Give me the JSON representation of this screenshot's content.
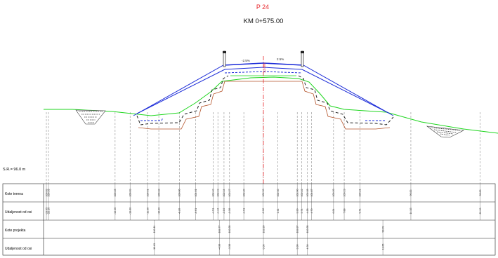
{
  "profile": {
    "number": "P 24",
    "chainage": "KM 0+575.00",
    "axis_label": "102.890",
    "scale_ref": "S.R.= 96.0 m",
    "slope_left": "-2.5%",
    "slope_right": "2.5%"
  },
  "colors": {
    "title_red": "#e8262b",
    "terrain_green": "#1ed61e",
    "road_blue": "#1b2bd8",
    "axis_red": "#e8262b",
    "base_brown": "#b5542b"
  },
  "table": {
    "rows": [
      {
        "label": "Kote terena"
      },
      {
        "label": "Udaljenost od osi"
      },
      {
        "label": "Kote projekta"
      },
      {
        "label": "Udaljenost od osi"
      }
    ],
    "terrain": [
      {
        "z": "100.03",
        "d": "-23.05"
      },
      {
        "z": "100.39",
        "d": "-22.10"
      },
      {
        "z": "100.15",
        "d": "-14.46"
      },
      {
        "z": "100.03",
        "d": "-13.00"
      },
      {
        "z": "100.01",
        "d": "-11.30"
      },
      {
        "z": "100.18",
        "d": "-10.20"
      },
      {
        "z": "100.06",
        "d": "-8.20"
      },
      {
        "z": "101.01",
        "d": "-6.61"
      },
      {
        "z": "102.40",
        "d": "-4.91"
      },
      {
        "z": "102.43",
        "d": "-4.44"
      },
      {
        "z": "102.34",
        "d": "-3.84"
      },
      {
        "z": "102.27",
        "d": "-3.30"
      },
      {
        "z": "102.20",
        "d": "-1.91"
      },
      {
        "z": "102.33",
        "d": "-0.02"
      },
      {
        "z": "102.30",
        "d": "1.41"
      },
      {
        "z": "102.60",
        "d": "3.30"
      },
      {
        "z": "102.22",
        "d": "3.74"
      },
      {
        "z": "102.28",
        "d": "4.28"
      },
      {
        "z": "101.87",
        "d": "4.70"
      },
      {
        "z": "100.29",
        "d": "6.84"
      },
      {
        "z": "100.19",
        "d": "7.88"
      },
      {
        "z": "100.21",
        "d": "9.41"
      },
      {
        "z": "99.83",
        "d": "14.38"
      },
      {
        "z": "99.00",
        "d": "21.13"
      }
    ],
    "project": [
      {
        "z": "100.11",
        "d": "-10.63"
      },
      {
        "z": "102.77",
        "d": "-4.30"
      },
      {
        "z": "102.85",
        "d": "-3.30"
      },
      {
        "z": "102.89",
        "d": "0.00"
      },
      {
        "z": "102.87",
        "d": "3.30"
      },
      {
        "z": "102.85",
        "d": "4.30"
      },
      {
        "z": "99.99",
        "d": "11.65"
      }
    ]
  }
}
